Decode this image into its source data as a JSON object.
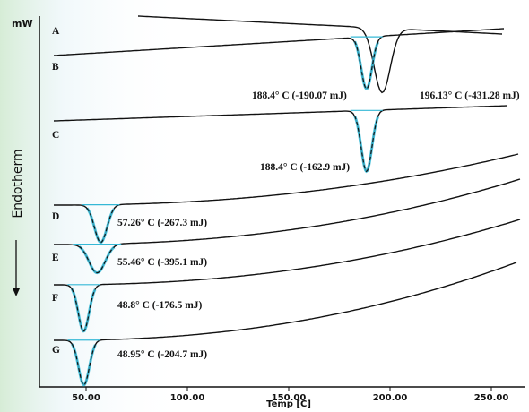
{
  "chart_data": {
    "type": "line",
    "ylabel_unit": "mW",
    "y_axis_label": "Endotherm",
    "xlabel": "Temp [C]",
    "x_ticks": [
      "50.00",
      "100.00",
      "150.00",
      "200.00",
      "250.00"
    ],
    "xlim": [
      30,
      258
    ],
    "series": [
      {
        "name": "A",
        "peaks": [
          {
            "temp": 196.13,
            "label": "196.13° C (-431.28 mJ)"
          }
        ]
      },
      {
        "name": "B",
        "peaks": [
          {
            "temp": 188.4,
            "label": "188.4° C (-190.07 mJ)"
          }
        ]
      },
      {
        "name": "C",
        "peaks": [
          {
            "temp": 188.4,
            "label": "188.4° C (-162.9 mJ)"
          }
        ]
      },
      {
        "name": "D",
        "peaks": [
          {
            "temp": 57.26,
            "label": "57.26° C (-267.3 mJ)"
          }
        ]
      },
      {
        "name": "E",
        "peaks": [
          {
            "temp": 55.46,
            "label": "55.46° C (-395.1 mJ)"
          }
        ]
      },
      {
        "name": "F",
        "peaks": [
          {
            "temp": 48.8,
            "label": "48.8° C (-176.5 mJ)"
          }
        ]
      },
      {
        "name": "G",
        "peaks": [
          {
            "temp": 48.95,
            "label": "48.95° C (-204.7 mJ)"
          }
        ]
      }
    ],
    "colors": {
      "trace": "#111111",
      "fit": "#35b8d6",
      "background_wash": "#dcefd9"
    }
  }
}
